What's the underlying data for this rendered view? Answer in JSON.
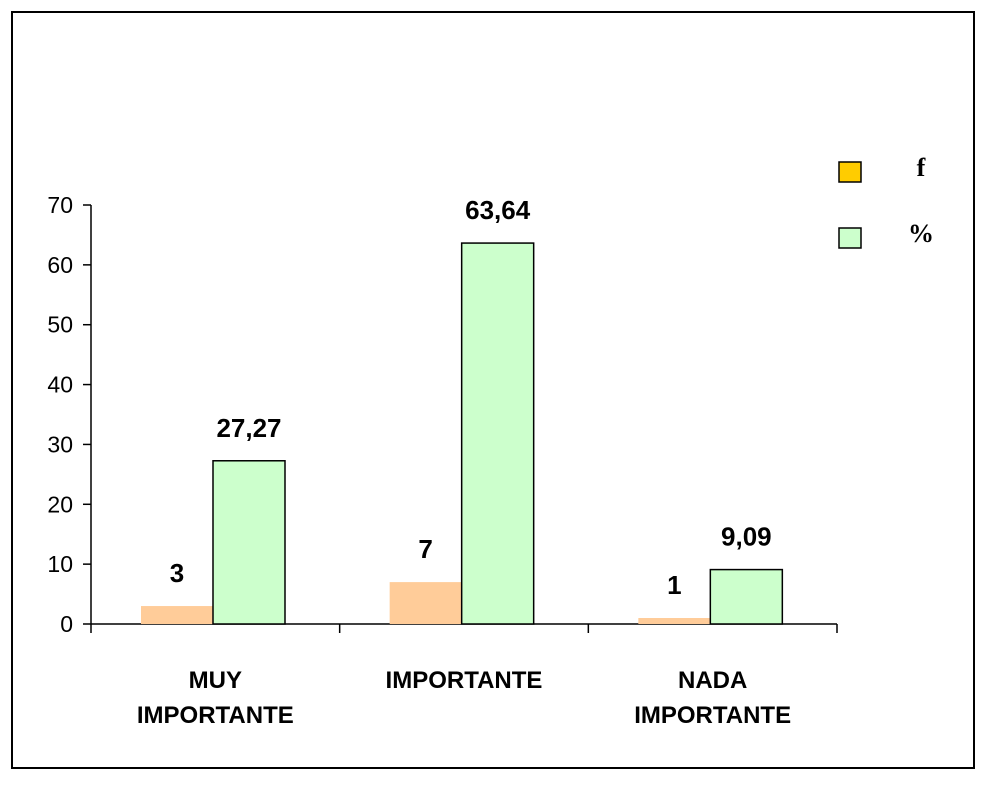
{
  "chart_data": {
    "type": "bar",
    "title": "",
    "xlabel": "",
    "ylabel": "",
    "ylim": [
      0,
      70
    ],
    "yticks": [
      0,
      10,
      20,
      30,
      40,
      50,
      60,
      70
    ],
    "grid": false,
    "legend_position": "top-right",
    "categories": [
      [
        "MUY",
        "IMPORTANTE"
      ],
      [
        "IMPORTANTE"
      ],
      [
        "NADA",
        "IMPORTANTE"
      ]
    ],
    "series": [
      {
        "name": "f",
        "values": [
          3,
          7,
          1
        ],
        "labels": [
          "3",
          "7",
          "1"
        ],
        "color": "#FFCC99",
        "legend_color": "#FFCC00"
      },
      {
        "name": "%",
        "values": [
          27.27,
          63.64,
          9.09
        ],
        "labels": [
          "27,27",
          "63,64",
          "9,09"
        ],
        "color": "#CCFFCC",
        "legend_color": "#CCFFCC"
      }
    ]
  }
}
